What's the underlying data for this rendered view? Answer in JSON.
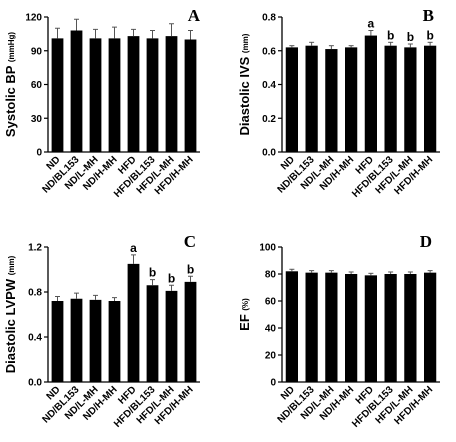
{
  "chart_data": [
    {
      "type": "bar",
      "panel": "A",
      "ylabel": "Systolic BP",
      "yunit": "(mmHg)",
      "ylim": [
        0,
        120
      ],
      "yticks": [
        "0",
        "30",
        "60",
        "90",
        "120"
      ],
      "categories": [
        "ND",
        "ND/BL153",
        "ND/L-MH",
        "ND/H-MH",
        "HFD",
        "HFD/BL153",
        "HFD/L-MH",
        "HFD/H-MH"
      ],
      "values": [
        101,
        108,
        101,
        101,
        103,
        101,
        103,
        100
      ],
      "errors": [
        9,
        10,
        8,
        10,
        6,
        7,
        11,
        8
      ],
      "significance": [
        "",
        "",
        "",
        "",
        "",
        "",
        "",
        ""
      ]
    },
    {
      "type": "bar",
      "panel": "B",
      "ylabel": "Diastolic IVS",
      "yunit": "(mm)",
      "ylim": [
        0,
        0.8
      ],
      "yticks": [
        "0.0",
        "0.2",
        "0.4",
        "0.6",
        "0.8"
      ],
      "categories": [
        "ND",
        "ND/BL153",
        "ND/L-MH",
        "ND/H-MH",
        "HFD",
        "HFD/BL153",
        "HFD/L-MH",
        "HFD/H-MH"
      ],
      "values": [
        0.62,
        0.63,
        0.61,
        0.62,
        0.69,
        0.63,
        0.62,
        0.63
      ],
      "errors": [
        0.01,
        0.02,
        0.02,
        0.01,
        0.03,
        0.02,
        0.02,
        0.02
      ],
      "significance": [
        "",
        "",
        "",
        "",
        "a",
        "b",
        "b",
        "b"
      ]
    },
    {
      "type": "bar",
      "panel": "C",
      "ylabel": "Diastolic LVPW",
      "yunit": "(mm)",
      "ylim": [
        0,
        1.2
      ],
      "yticks": [
        "0.0",
        "0.4",
        "0.8",
        "1.2"
      ],
      "categories": [
        "ND",
        "ND/BL153",
        "ND/L-MH",
        "ND/H-MH",
        "HFD",
        "HFD/BL153",
        "HFD/L-MH",
        "HFD/H-MH"
      ],
      "values": [
        0.72,
        0.74,
        0.73,
        0.72,
        1.05,
        0.86,
        0.81,
        0.89
      ],
      "errors": [
        0.04,
        0.05,
        0.04,
        0.03,
        0.08,
        0.05,
        0.05,
        0.05
      ],
      "significance": [
        "",
        "",
        "",
        "",
        "a",
        "b",
        "b",
        "b"
      ]
    },
    {
      "type": "bar",
      "panel": "D",
      "ylabel": "EF",
      "yunit": "(%)",
      "ylim": [
        0,
        100
      ],
      "yticks": [
        "0",
        "20",
        "40",
        "60",
        "80",
        "100"
      ],
      "categories": [
        "ND",
        "ND/BL153",
        "ND/L-MH",
        "ND/H-MH",
        "HFD",
        "HFD/BL153",
        "HFD/L-MH",
        "HFD/H-MH"
      ],
      "values": [
        82,
        81,
        81,
        80,
        79,
        80,
        80,
        81
      ],
      "errors": [
        1.5,
        1.5,
        1.5,
        1.5,
        1.5,
        1.5,
        1.5,
        1.5
      ],
      "significance": [
        "",
        "",
        "",
        "",
        "",
        "",
        "",
        ""
      ]
    }
  ]
}
